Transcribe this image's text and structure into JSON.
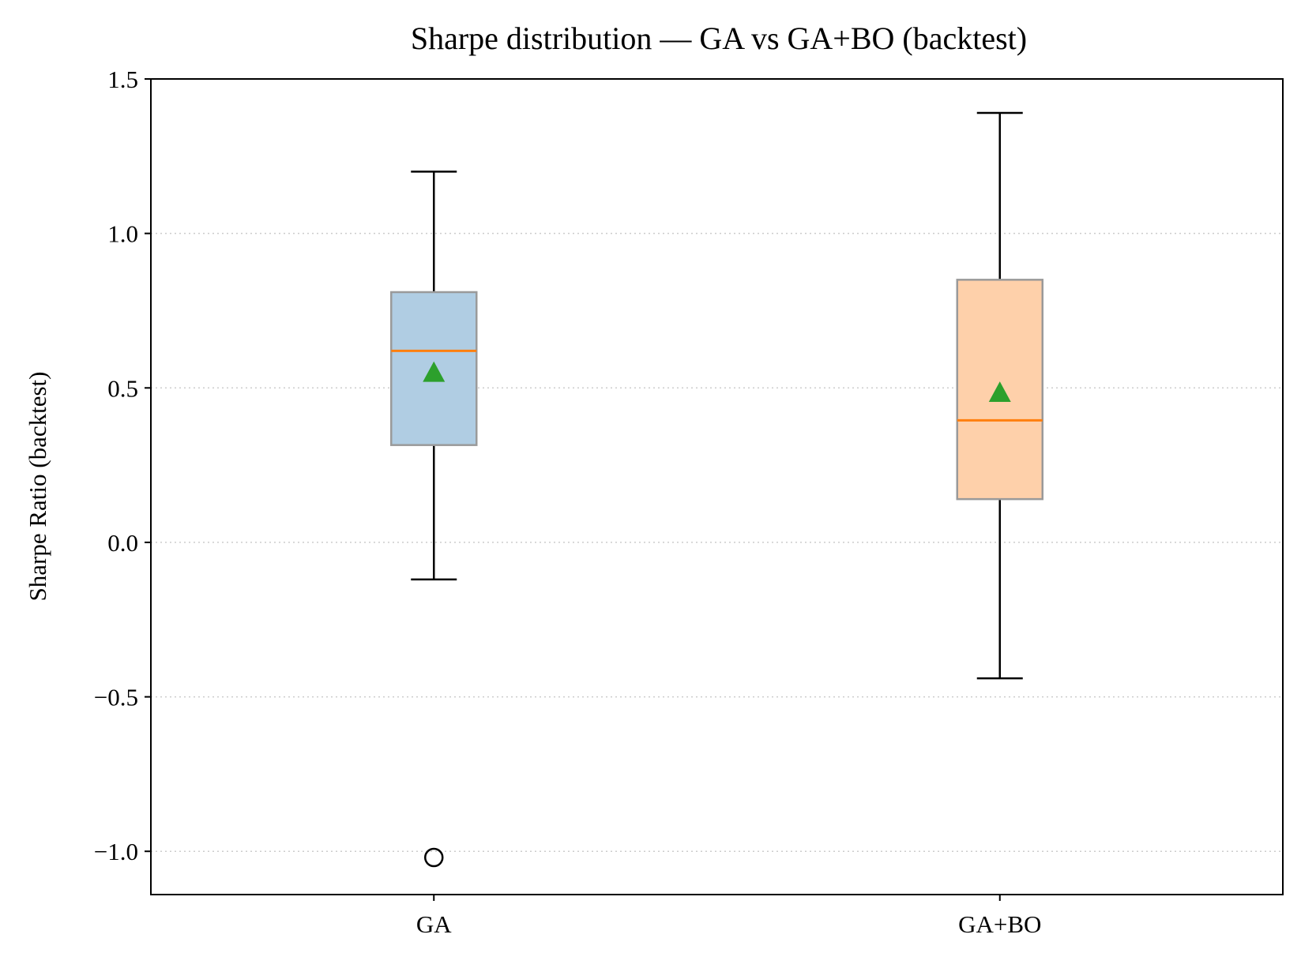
{
  "chart_data": {
    "type": "box",
    "title": "Sharpe distribution — GA vs GA+BO (backtest)",
    "xlabel": "",
    "ylabel": "Sharpe Ratio (backtest)",
    "ylim": [
      -1.14,
      1.5
    ],
    "yticks": [
      -1.0,
      -0.5,
      0.0,
      0.5,
      1.0,
      1.5
    ],
    "ytick_labels": [
      "−1.0",
      "−0.5",
      "0.0",
      "0.5",
      "1.0",
      "1.5"
    ],
    "grid": "y-dotted",
    "categories": [
      "GA",
      "GA+BO"
    ],
    "series": [
      {
        "label": "GA",
        "whisker_low": -0.12,
        "q1": 0.315,
        "median": 0.62,
        "q3": 0.81,
        "whisker_high": 1.2,
        "mean": 0.55,
        "outliers": [
          -1.02
        ],
        "box_color": "#b0cde3",
        "edge_color": "#9a9a9a"
      },
      {
        "label": "GA+BO",
        "whisker_low": -0.44,
        "q1": 0.14,
        "median": 0.395,
        "q3": 0.85,
        "whisker_high": 1.39,
        "mean": 0.485,
        "outliers": [],
        "box_color": "#fed0aa",
        "edge_color": "#9a9a9a"
      }
    ],
    "colors": {
      "median": "#ff7f0e",
      "mean_marker": "#2ca02c",
      "whisker": "#000000",
      "grid": "#cccccc"
    }
  }
}
